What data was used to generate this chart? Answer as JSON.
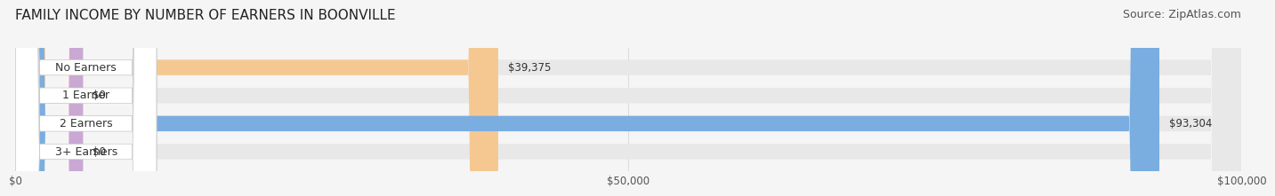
{
  "title": "FAMILY INCOME BY NUMBER OF EARNERS IN BOONVILLE",
  "source": "Source: ZipAtlas.com",
  "categories": [
    "No Earners",
    "1 Earner",
    "2 Earners",
    "3+ Earners"
  ],
  "values": [
    39375,
    0,
    93304,
    0
  ],
  "bar_colors": [
    "#f5c892",
    "#f5a0a0",
    "#7aade0",
    "#c9a8d4"
  ],
  "track_color": "#e8e8e8",
  "label_bg_color": "#ffffff",
  "xlim": [
    0,
    100000
  ],
  "xticks": [
    0,
    50000,
    100000
  ],
  "xtick_labels": [
    "$0",
    "$50,000",
    "$100,000"
  ],
  "title_fontsize": 11,
  "source_fontsize": 9,
  "label_fontsize": 9,
  "value_fontsize": 8.5,
  "bar_height": 0.55,
  "background_color": "#f5f5f5"
}
